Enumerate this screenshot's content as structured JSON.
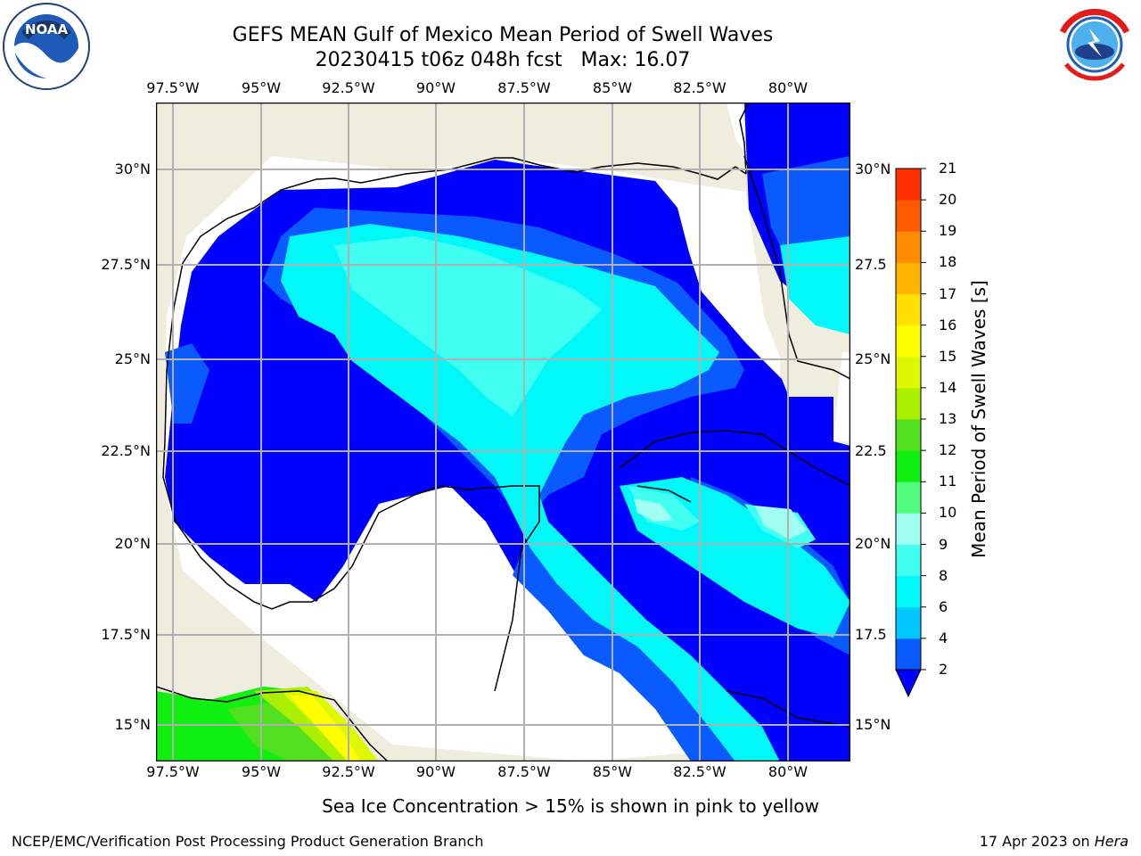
{
  "header": {
    "title_line1": "GEFS MEAN Gulf of Mexico Mean Period of Swell Waves",
    "title_line2_prefix": "20230415 t06z 048h fcst   Max: ",
    "max_value": "16.07"
  },
  "logos": {
    "left": {
      "icon": "noaa-logo",
      "text": "NOAA"
    },
    "right": {
      "icon": "nws-logo",
      "text": "NATIONAL WEATHER SERVICE"
    }
  },
  "map": {
    "lon_ticks": [
      "97.5°W",
      "95°W",
      "92.5°W",
      "90°W",
      "87.5°W",
      "85°W",
      "82.5°W",
      "80°W"
    ],
    "lat_ticks_left": [
      "30°N",
      "27.5°N",
      "25°N",
      "22.5°N",
      "20°N",
      "17.5°N",
      "15°N"
    ],
    "lat_ticks_right": [
      "30°N",
      "27.5",
      "25°N",
      "22.5",
      "20°N",
      "17.5",
      "15°N"
    ],
    "extent": {
      "lon_min": -98,
      "lon_max": -78.2,
      "lat_min": 14.0,
      "lat_max": 31.8
    },
    "colors": {
      "land": "#EFEEDE",
      "no_data": "#FFFFFF",
      "grid": "#B0B0B0",
      "coast": "#000000"
    }
  },
  "colorbar": {
    "label": "Mean Period of Swell Waves [s]",
    "ticks": [
      "2",
      "4",
      "6",
      "8",
      "9",
      "10",
      "11",
      "12",
      "13",
      "14",
      "15",
      "16",
      "17",
      "18",
      "19",
      "20",
      "21"
    ],
    "colors": [
      "#0A5BFF",
      "#00C8FF",
      "#00F8F8",
      "#40FFF0",
      "#A0FFF0",
      "#50FF80",
      "#10F010",
      "#50E020",
      "#AAEE00",
      "#DDF800",
      "#FFFF00",
      "#FFE000",
      "#FFB400",
      "#FF8C00",
      "#FF5A00",
      "#FF3000",
      "#FF0000"
    ],
    "extend_color": "#0000FF"
  },
  "footer": {
    "note": "Sea Ice Concentration > 15% is shown in pink to yellow",
    "credit": "NCEP/EMC/Verification Post Processing Product Generation Branch",
    "date": "17 Apr 2023 on ",
    "machine": "Hera"
  }
}
